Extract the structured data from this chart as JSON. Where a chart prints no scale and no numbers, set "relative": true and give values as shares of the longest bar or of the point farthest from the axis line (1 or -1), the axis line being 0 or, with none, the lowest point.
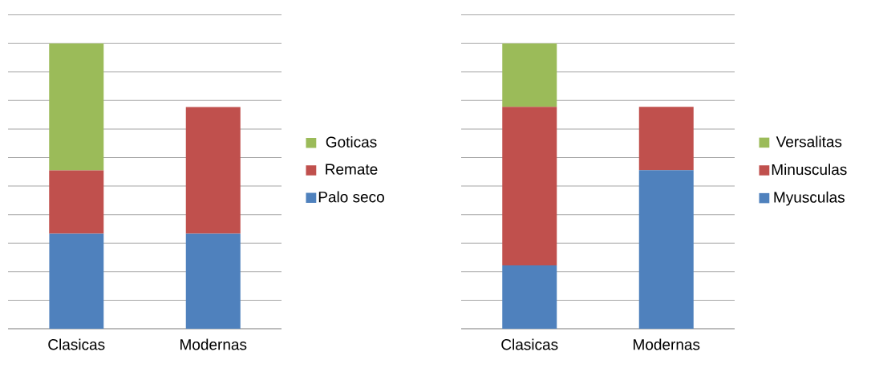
{
  "chart_data": [
    {
      "type": "bar",
      "stacked": true,
      "relative": true,
      "grid": "y",
      "legend": "right",
      "categories": [
        "Clasicas",
        "Modernas"
      ],
      "series": [
        {
          "name": "Palo seco",
          "color": "#4f81bd",
          "values": [
            0.333,
            0.333
          ]
        },
        {
          "name": "Remate",
          "color": "#c0504d",
          "values": [
            0.222,
            0.444
          ]
        },
        {
          "name": "Goticas",
          "color": "#9bbb59",
          "values": [
            0.445,
            null
          ]
        }
      ]
    },
    {
      "type": "bar",
      "stacked": true,
      "relative": true,
      "grid": "y",
      "legend": "right",
      "categories": [
        "Clasicas",
        "Modernas"
      ],
      "series": [
        {
          "name": "Myusculas",
          "color": "#4f81bd",
          "values": [
            0.222,
            0.556
          ]
        },
        {
          "name": "Minusculas",
          "color": "#c0504d",
          "values": [
            0.556,
            0.222
          ]
        },
        {
          "name": "Versalitas",
          "color": "#9bbb59",
          "values": [
            0.222,
            null
          ]
        }
      ]
    }
  ]
}
